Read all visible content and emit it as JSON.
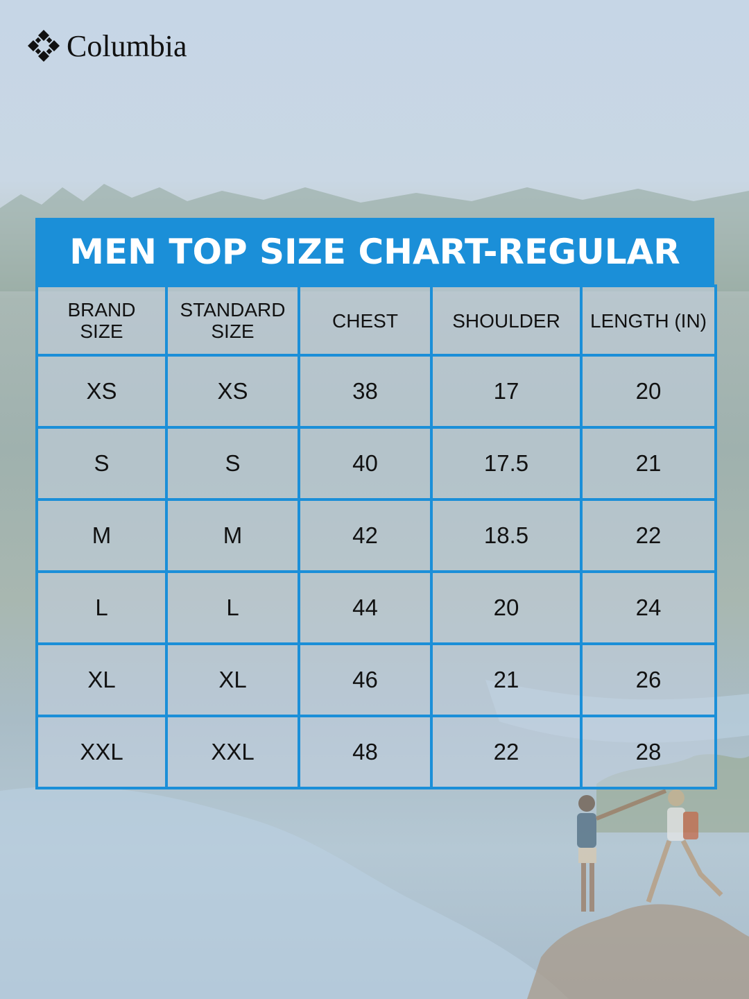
{
  "brand": {
    "name": "Columbia",
    "logo_icon": "columbia-diamond-logo-icon"
  },
  "chart": {
    "title": "MEN TOP SIZE CHART-REGULAR",
    "accent_color": "#1b8fd8",
    "headers": [
      {
        "line1": "BRAND",
        "line2": "SIZE"
      },
      {
        "line1": "STANDARD",
        "line2": "SIZE"
      },
      {
        "line1": "CHEST",
        "line2": ""
      },
      {
        "line1": "SHOULDER",
        "line2": ""
      },
      {
        "line1": "LENGTH (IN)",
        "line2": ""
      }
    ],
    "rows": [
      [
        "XS",
        "XS",
        "38",
        "17",
        "20"
      ],
      [
        "S",
        "S",
        "40",
        "17.5",
        "21"
      ],
      [
        "M",
        "M",
        "42",
        "18.5",
        "22"
      ],
      [
        "L",
        "L",
        "44",
        "20",
        "24"
      ],
      [
        "XL",
        "XL",
        "46",
        "21",
        "26"
      ],
      [
        "XXL",
        "XXL",
        "48",
        "22",
        "28"
      ]
    ]
  }
}
